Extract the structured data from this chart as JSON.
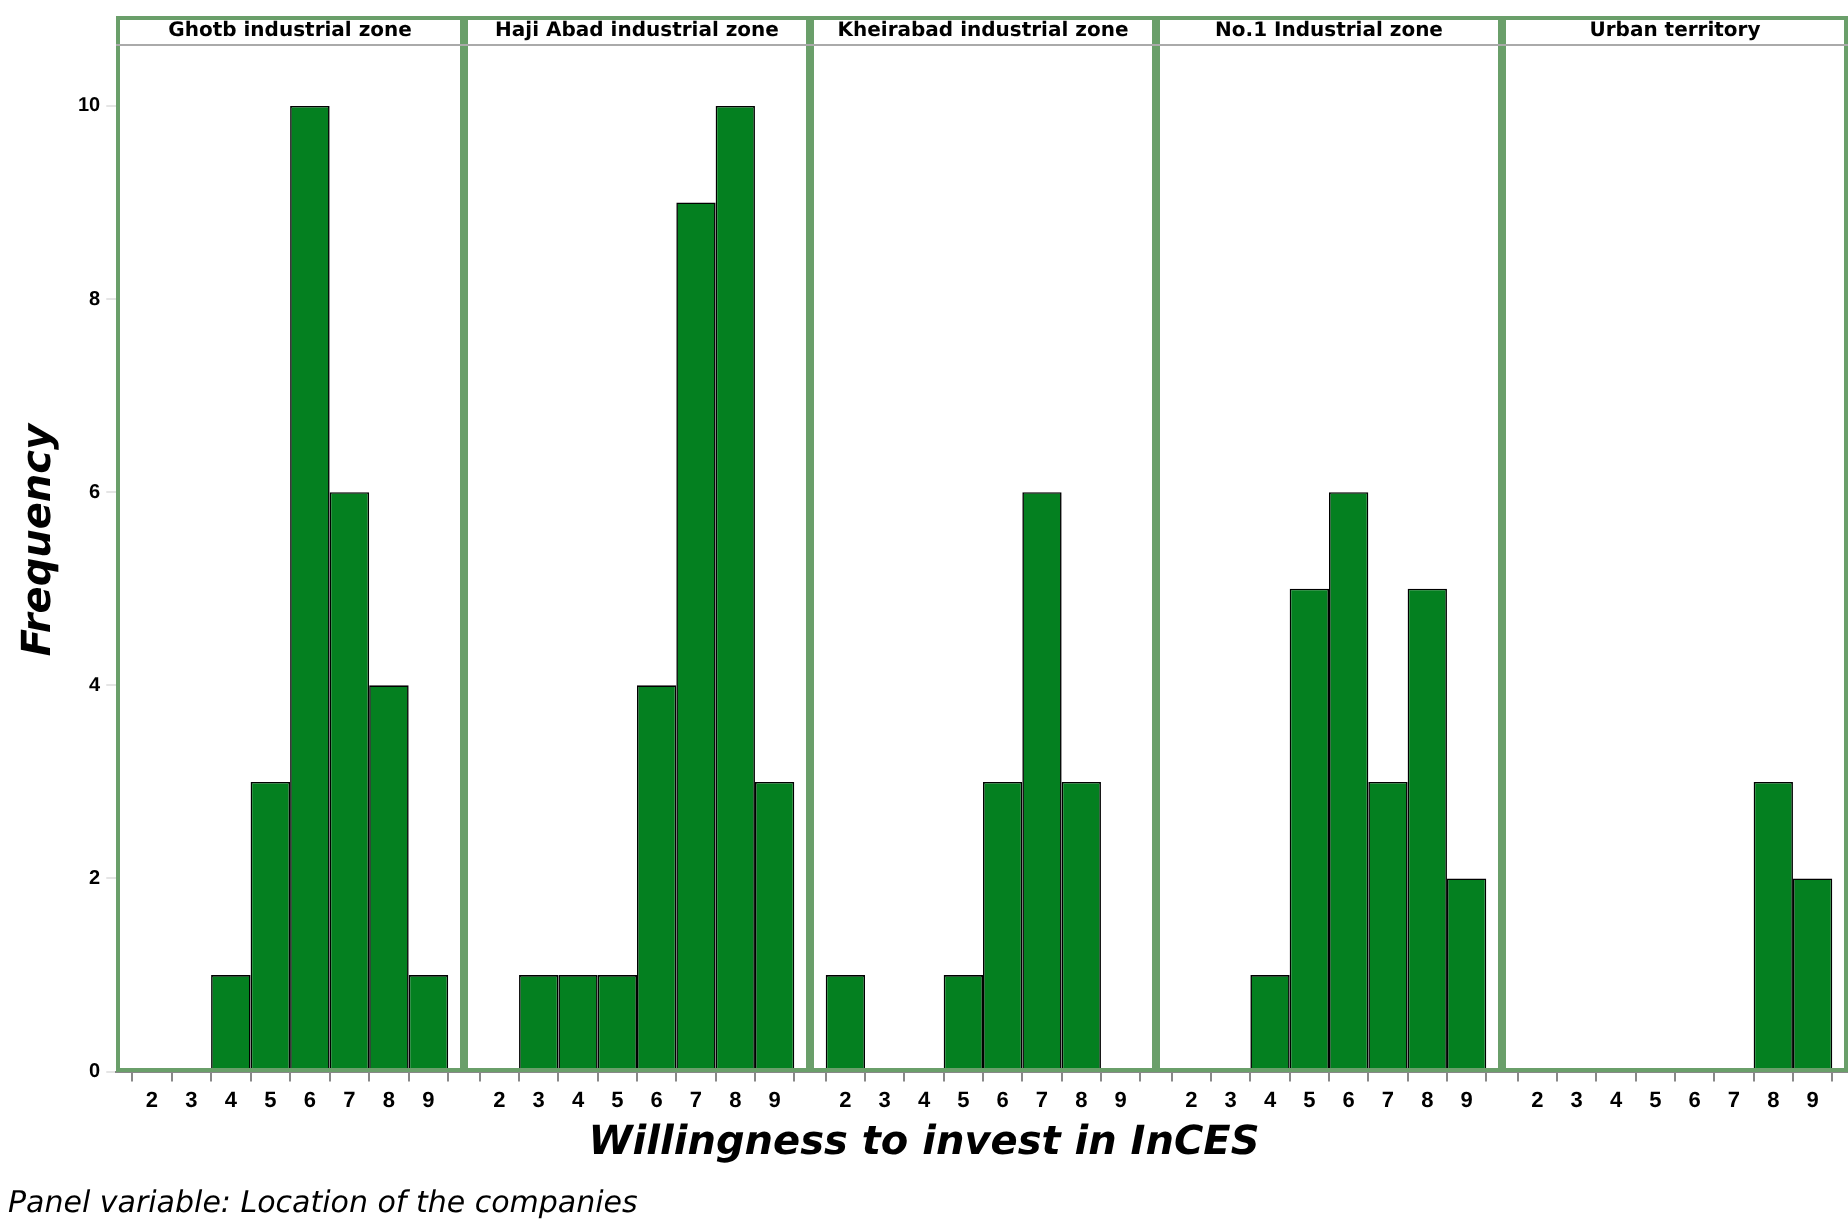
{
  "chart_data": [
    {
      "type": "histogram",
      "title": "Ghotb industrial zone",
      "ylabel": "Frequency",
      "annotations": [
        "Panel variable: Location of the companies"
      ],
      "bins": [
        1.5,
        2.5,
        3.5,
        4.5,
        5.5,
        6.5,
        7.5,
        8.5,
        9.5
      ],
      "values": [
        0,
        0,
        1,
        3,
        10,
        6,
        4,
        1
      ],
      "color": "#048020",
      "xlim": [
        1.1,
        9.9
      ],
      "xticks": [
        2,
        3,
        4,
        5,
        6,
        7,
        8,
        9
      ],
      "ylim": [
        0,
        10.6
      ],
      "yticks": [
        0,
        2,
        4,
        6,
        8,
        10
      ]
    },
    {
      "type": "histogram",
      "title": "Haji Abad industrial zone",
      "bins": [
        1.5,
        2.5,
        3.5,
        4.5,
        5.5,
        6.5,
        7.5,
        8.5,
        9.5
      ],
      "values": [
        0,
        1,
        1,
        1,
        4,
        9,
        10,
        3
      ],
      "color": "#048020",
      "xlim": [
        1.1,
        9.9
      ],
      "xticks": [
        2,
        3,
        4,
        5,
        6,
        7,
        8,
        9
      ],
      "ylim": [
        0,
        10.6
      ],
      "yticks": [
        0,
        2,
        4,
        6,
        8,
        10
      ],
      "tick_labels": "x"
    },
    {
      "type": "histogram",
      "title": "Kheirabad industrial zone",
      "xlabel": "Willingness to invest in InCES",
      "bins": [
        1.5,
        2.5,
        3.5,
        4.5,
        5.5,
        6.5,
        7.5,
        8.5,
        9.5
      ],
      "values": [
        1,
        0,
        0,
        1,
        3,
        6,
        3,
        0
      ],
      "color": "#048020",
      "xlim": [
        1.1,
        9.9
      ],
      "xticks": [
        2,
        3,
        4,
        5,
        6,
        7,
        8,
        9
      ],
      "ylim": [
        0,
        10.6
      ],
      "yticks": [
        0,
        2,
        4,
        6,
        8,
        10
      ],
      "tick_labels": "x"
    },
    {
      "type": "histogram",
      "title": "No.1 Industrial zone",
      "bins": [
        1.5,
        2.5,
        3.5,
        4.5,
        5.5,
        6.5,
        7.5,
        8.5,
        9.5
      ],
      "values": [
        0,
        0,
        1,
        5,
        6,
        3,
        5,
        2
      ],
      "color": "#048020",
      "xlim": [
        1.1,
        9.9
      ],
      "xticks": [
        2,
        3,
        4,
        5,
        6,
        7,
        8,
        9
      ],
      "ylim": [
        0,
        10.6
      ],
      "yticks": [
        0,
        2,
        4,
        6,
        8,
        10
      ],
      "tick_labels": "x"
    },
    {
      "type": "histogram",
      "title": "Urban territory",
      "bins": [
        1.5,
        2.5,
        3.5,
        4.5,
        5.5,
        6.5,
        7.5,
        8.5,
        9.5
      ],
      "values": [
        0,
        0,
        0,
        0,
        0,
        0,
        3,
        2
      ],
      "color": "#048020",
      "xlim": [
        1.1,
        9.9
      ],
      "xticks": [
        2,
        3,
        4,
        5,
        6,
        7,
        8,
        9
      ],
      "ylim": [
        0,
        10.6
      ],
      "yticks": [
        0,
        2,
        4,
        6,
        8,
        10
      ],
      "tick_labels": "x"
    }
  ]
}
